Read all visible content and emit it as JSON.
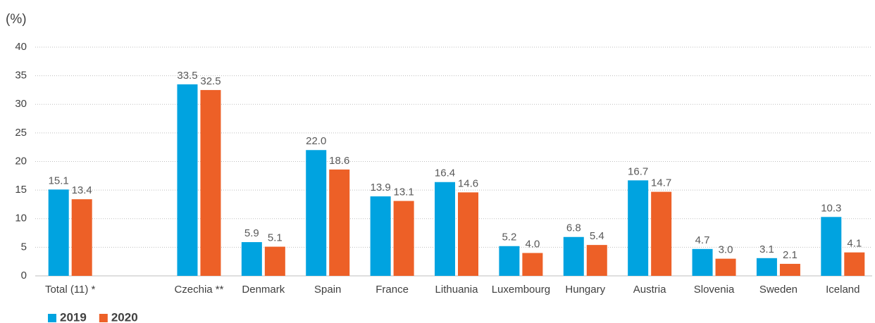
{
  "chart_data": {
    "type": "bar",
    "y_label": "(%)",
    "categories": [
      "Total (11) *",
      null,
      "Czechia **",
      "Denmark",
      "Spain",
      "France",
      "Lithuania",
      "Luxembourg",
      "Hungary",
      "Austria",
      "Slovenia",
      "Sweden",
      "Iceland"
    ],
    "series": [
      {
        "name": "2019",
        "color": "#00a3e0",
        "values": [
          15.1,
          null,
          33.5,
          5.9,
          22.0,
          13.9,
          16.4,
          5.2,
          6.8,
          16.7,
          4.7,
          3.1,
          10.3
        ],
        "value_labels": [
          "15.1",
          null,
          "33.5",
          "5.9",
          "22.0",
          "13.9",
          "16.4",
          "5.2",
          "6.8",
          "16.7",
          "4.7",
          "3.1",
          "10.3"
        ]
      },
      {
        "name": "2020",
        "color": "#ed6027",
        "values": [
          13.4,
          null,
          32.5,
          5.1,
          18.6,
          13.1,
          14.6,
          4.0,
          5.4,
          14.7,
          3.0,
          2.1,
          4.1
        ],
        "value_labels": [
          "13.4",
          null,
          "32.5",
          "5.1",
          "18.6",
          "13.1",
          "14.6",
          "4.0",
          "5.4",
          "14.7",
          "3.0",
          "2.1",
          "4.1"
        ]
      }
    ],
    "ylim": [
      0,
      40
    ],
    "yticks": [
      0,
      5,
      10,
      15,
      20,
      25,
      30,
      35,
      40
    ],
    "grid": true,
    "legend": "bottom-left"
  }
}
